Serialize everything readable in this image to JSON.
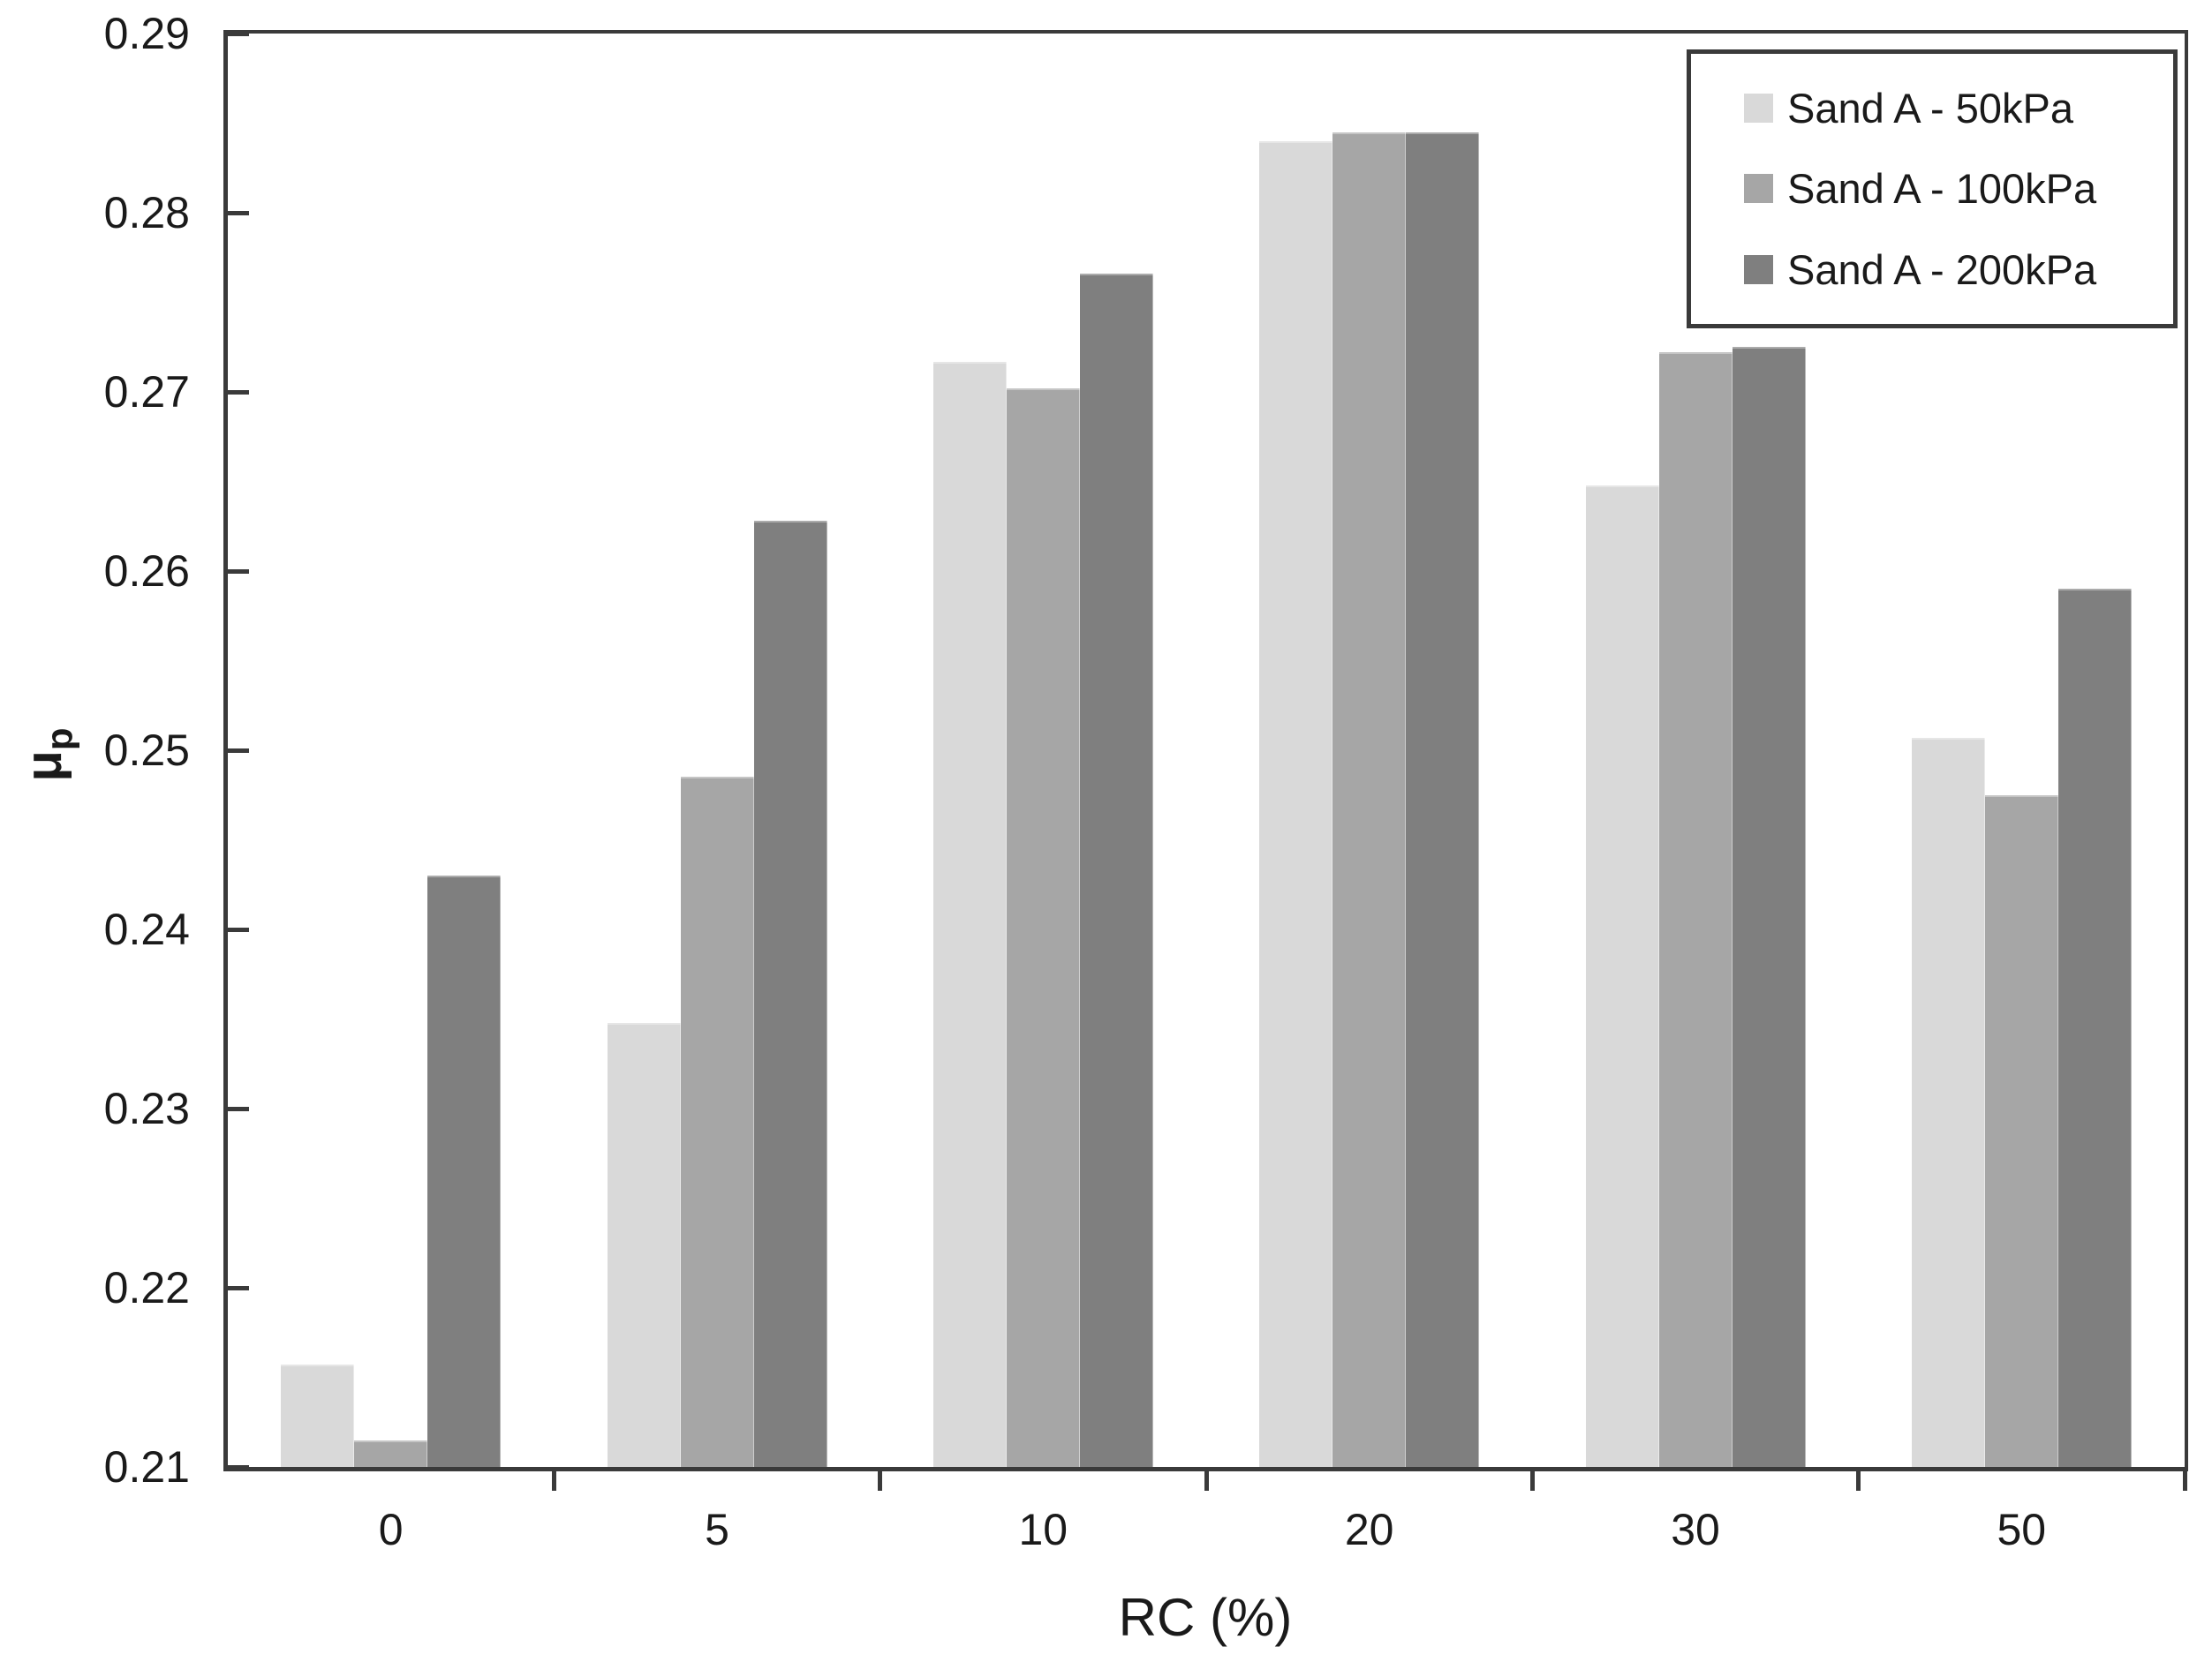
{
  "chart_data": {
    "type": "bar",
    "title": "",
    "xlabel": "RC (%)",
    "ylabel": {
      "base": "μ",
      "sub": "p"
    },
    "categories": [
      "0",
      "5",
      "10",
      "20",
      "30",
      "50"
    ],
    "series": [
      {
        "name": "Sand A - 50kPa",
        "color": "#d9d9d9",
        "values": [
          0.2157,
          0.2348,
          0.2717,
          0.284,
          0.2648,
          0.2507
        ]
      },
      {
        "name": "Sand A - 100kPa",
        "color": "#a6a6a6",
        "values": [
          0.2115,
          0.2485,
          0.2702,
          0.2845,
          0.2722,
          0.2475
        ]
      },
      {
        "name": "Sand A - 200kPa",
        "color": "#7f7f7f",
        "values": [
          0.243,
          0.2628,
          0.2766,
          0.2845,
          0.2725,
          0.259
        ]
      }
    ],
    "ylim": [
      0.21,
      0.29
    ],
    "ytick_step": 0.01,
    "ytick_labels": [
      "0.21",
      "0.22",
      "0.23",
      "0.24",
      "0.25",
      "0.26",
      "0.27",
      "0.28",
      "0.29"
    ],
    "legend_position": "top-right",
    "grid": false
  },
  "colors": {
    "axis": "#3a3a3a",
    "text": "#1a1a1a",
    "background": "#ffffff"
  }
}
